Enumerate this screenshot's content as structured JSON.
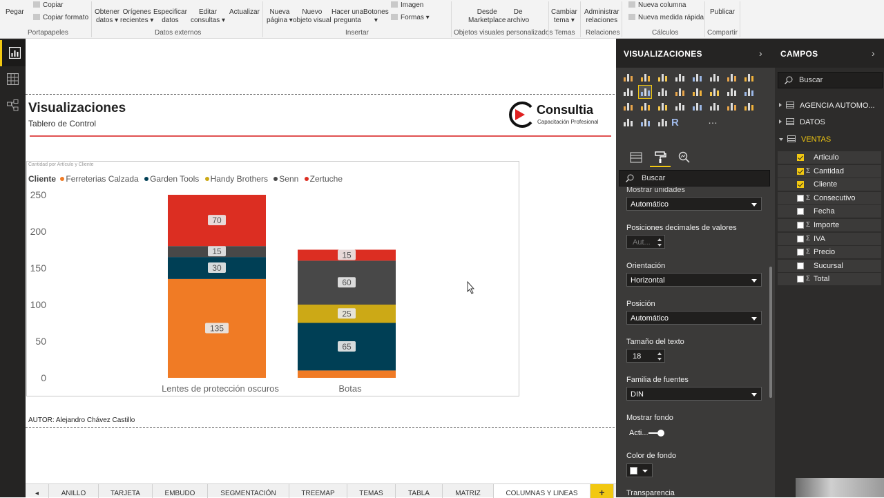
{
  "ribbon": {
    "buttons": [
      {
        "id": "pegar",
        "label": "Pegar"
      },
      {
        "id": "obtener",
        "label": "Obtener\ndatos ▾"
      },
      {
        "id": "origenes",
        "label": "Orígenes\nrecientes ▾"
      },
      {
        "id": "especificar",
        "label": "Especificar\ndatos"
      },
      {
        "id": "editar",
        "label": "Editar\nconsultas ▾"
      },
      {
        "id": "actualizar",
        "label": "Actualizar"
      },
      {
        "id": "nuevapagina",
        "label": "Nueva\npágina ▾"
      },
      {
        "id": "nuevoobjeto",
        "label": "Nuevo\nobjeto visual"
      },
      {
        "id": "hacerpregunta",
        "label": "Hacer una\npregunta"
      },
      {
        "id": "botones",
        "label": "Botones\n▾"
      },
      {
        "id": "desdemarket",
        "label": "Desde\nMarketplace"
      },
      {
        "id": "dearchivo",
        "label": "De\narchivo"
      },
      {
        "id": "cambiartema",
        "label": "Cambiar\ntema ▾"
      },
      {
        "id": "administrar",
        "label": "Administrar\nrelaciones"
      },
      {
        "id": "publicar",
        "label": "Publicar"
      }
    ],
    "small": {
      "copiar": "Copiar",
      "copiar_formato": "Copiar formato",
      "imagen": "Imagen",
      "formas": "Formas ▾",
      "nueva_columna": "Nueva columna",
      "nueva_medida": "Nueva medida rápida"
    },
    "groups": {
      "portapapeles": "Portapapeles",
      "datos_externos": "Datos externos",
      "insertar": "Insertar",
      "objetos_personalizados": "Objetos visuales personalizados",
      "temas": "Temas",
      "relaciones": "Relaciones",
      "calculos": "Cálculos",
      "compartir": "Compartir"
    }
  },
  "report": {
    "title": "Visualizaciones",
    "subtitle": "Tablero de Control",
    "logo_name": "Consultia",
    "logo_tagline": "Capacitación Profesional",
    "author": "AUTOR: Alejandro Chávez Castillo"
  },
  "chart_data": {
    "type": "bar",
    "stacked": true,
    "title": "Cantidad por Artículo y Cliente",
    "legend_title": "Cliente",
    "legend_position": "top-left",
    "categories": [
      "Lentes de protección oscuros",
      "Botas"
    ],
    "series": [
      {
        "name": "Ferreterias Calzada",
        "color": "#f07b25",
        "values": [
          135,
          10
        ]
      },
      {
        "name": "Garden Tools",
        "color": "#003f55",
        "values": [
          30,
          65
        ]
      },
      {
        "name": "Handy Brothers",
        "color": "#cca916",
        "values": [
          0,
          25
        ]
      },
      {
        "name": "Senn",
        "color": "#484848",
        "values": [
          15,
          60
        ]
      },
      {
        "name": "Zertuche",
        "color": "#dc2e22",
        "values": [
          70,
          15
        ]
      }
    ],
    "data_labels": [
      {
        "category": "Lentes de protección oscuros",
        "series": "Ferreterias Calzada",
        "text": "135"
      },
      {
        "category": "Lentes de protección oscuros",
        "series": "Garden Tools",
        "text": "30"
      },
      {
        "category": "Lentes de protección oscuros",
        "series": "Senn",
        "text": "15"
      },
      {
        "category": "Lentes de protección oscuros",
        "series": "Zertuche",
        "text": "70"
      },
      {
        "category": "Botas",
        "series": "Garden Tools",
        "text": "65"
      },
      {
        "category": "Botas",
        "series": "Handy Brothers",
        "text": "25"
      },
      {
        "category": "Botas",
        "series": "Senn",
        "text": "60"
      },
      {
        "category": "Botas",
        "series": "Zertuche",
        "text": "15"
      }
    ],
    "y_ticks": [
      0,
      50,
      100,
      150,
      200,
      250
    ],
    "ylim": [
      0,
      250
    ],
    "grid": false
  },
  "tabs": [
    {
      "label": "◂",
      "active": false
    },
    {
      "label": "ANILLO",
      "active": false
    },
    {
      "label": "TARJETA",
      "active": false
    },
    {
      "label": "EMBUDO",
      "active": false
    },
    {
      "label": "SEGMENTACIÓN",
      "active": false
    },
    {
      "label": "TREEMAP",
      "active": false
    },
    {
      "label": "TEMAS",
      "active": false
    },
    {
      "label": "TABLA",
      "active": false
    },
    {
      "label": "MATRIZ",
      "active": false
    },
    {
      "label": "COLUMNAS Y LINEAS",
      "active": true
    },
    {
      "label": "+",
      "active": false
    }
  ],
  "viz_pane": {
    "title": "VISUALIZACIONES",
    "search_placeholder": "Buscar",
    "r_icon": "R",
    "more_icon": "…",
    "format": {
      "cut_label": "Mostrar unidades",
      "unidades_value": "Automático",
      "decimales_label": "Posiciones decimales de valores",
      "decimales_value": "Aut...",
      "orientacion_label": "Orientación",
      "orientacion_value": "Horizontal",
      "posicion_label": "Posición",
      "posicion_value": "Automático",
      "tamano_label": "Tamaño del texto",
      "tamano_value": "18",
      "familia_label": "Familia de fuentes",
      "familia_value": "DIN",
      "fondo_label": "Mostrar fondo",
      "fondo_value": "Acti...",
      "color_label": "Color de fondo",
      "transparencia_label": "Transparencia"
    }
  },
  "fields_pane": {
    "title": "CAMPOS",
    "search_placeholder": "Buscar",
    "tables": [
      {
        "name": "AGENCIA AUTOMO...",
        "open": false,
        "highlight": false
      },
      {
        "name": "DATOS",
        "open": false,
        "highlight": false
      },
      {
        "name": "VENTAS",
        "open": true,
        "highlight": true
      }
    ],
    "fields": [
      {
        "name": "Articulo",
        "checked": true,
        "sigma": false
      },
      {
        "name": "Cantidad",
        "checked": true,
        "sigma": true
      },
      {
        "name": "Cliente",
        "checked": true,
        "sigma": false
      },
      {
        "name": "Consecutivo",
        "checked": false,
        "sigma": true
      },
      {
        "name": "Fecha",
        "checked": false,
        "sigma": false
      },
      {
        "name": "Importe",
        "checked": false,
        "sigma": true
      },
      {
        "name": "IVA",
        "checked": false,
        "sigma": true
      },
      {
        "name": "Precio",
        "checked": false,
        "sigma": true
      },
      {
        "name": "Sucursal",
        "checked": false,
        "sigma": false
      },
      {
        "name": "Total",
        "checked": false,
        "sigma": true
      }
    ]
  }
}
